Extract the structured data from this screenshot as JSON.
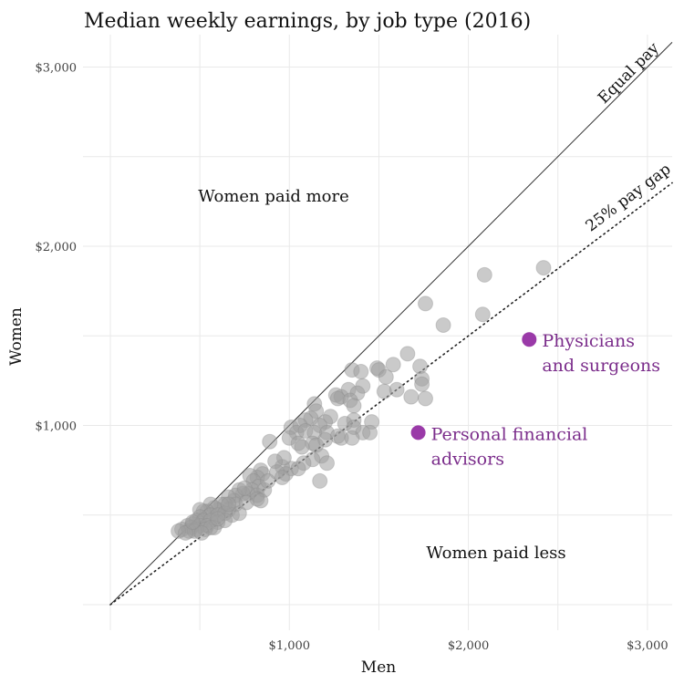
{
  "chart_data": {
    "type": "scatter",
    "title": "Median weekly earnings, by job type (2016)",
    "xlabel": "Men",
    "ylabel": "Women",
    "xlim": [
      0,
      3150
    ],
    "ylim": [
      0,
      3120
    ],
    "x_ticks": [
      1000,
      2000,
      3000
    ],
    "x_tick_labels": [
      "$1,000",
      "$2,000",
      "$3,000"
    ],
    "y_ticks": [
      1000,
      2000,
      3000
    ],
    "y_tick_labels": [
      "$1,000",
      "$2,000",
      "$3,000"
    ],
    "grid": true,
    "reference_lines": [
      {
        "label": "Equal pay",
        "slope": 1.0,
        "style": "solid"
      },
      {
        "label": "25% pay gap",
        "slope": 0.75,
        "style": "dotted"
      }
    ],
    "region_labels": {
      "upper": "Women paid more",
      "lower": "Women paid less"
    },
    "highlighted": [
      {
        "label_line1": "Physicians",
        "label_line2": "and surgeons",
        "x": 2340,
        "y": 1480,
        "color": "#9a3aa8"
      },
      {
        "label_line1": "Personal financial",
        "label_line2": "advisors",
        "x": 1720,
        "y": 960,
        "color": "#9a3aa8"
      }
    ],
    "points": [
      [
        2420,
        1880
      ],
      [
        2090,
        1840
      ],
      [
        1760,
        1680
      ],
      [
        2080,
        1620
      ],
      [
        1860,
        1560
      ],
      [
        1660,
        1400
      ],
      [
        1580,
        1340
      ],
      [
        1730,
        1330
      ],
      [
        1490,
        1320
      ],
      [
        1500,
        1310
      ],
      [
        1350,
        1310
      ],
      [
        1400,
        1300
      ],
      [
        1540,
        1270
      ],
      [
        1740,
        1260
      ],
      [
        1740,
        1230
      ],
      [
        1410,
        1220
      ],
      [
        1600,
        1200
      ],
      [
        1330,
        1200
      ],
      [
        1380,
        1180
      ],
      [
        1530,
        1190
      ],
      [
        1260,
        1170
      ],
      [
        1290,
        1160
      ],
      [
        1680,
        1160
      ],
      [
        1270,
        1150
      ],
      [
        1760,
        1150
      ],
      [
        1340,
        1140
      ],
      [
        1140,
        1120
      ],
      [
        1360,
        1110
      ],
      [
        1230,
        1050
      ],
      [
        1150,
        1080
      ],
      [
        1120,
        1040
      ],
      [
        1090,
        1030
      ],
      [
        1200,
        1020
      ],
      [
        1360,
        1030
      ],
      [
        1460,
        1020
      ],
      [
        1010,
        990
      ],
      [
        1060,
        1000
      ],
      [
        1170,
        1000
      ],
      [
        1310,
        1010
      ],
      [
        1360,
        990
      ],
      [
        1040,
        960
      ],
      [
        1090,
        970
      ],
      [
        1140,
        960
      ],
      [
        1210,
        960
      ],
      [
        1270,
        940
      ],
      [
        1000,
        930
      ],
      [
        1050,
        900
      ],
      [
        1130,
        900
      ],
      [
        1200,
        920
      ],
      [
        1290,
        930
      ],
      [
        1410,
        960
      ],
      [
        1450,
        960
      ],
      [
        1350,
        930
      ],
      [
        890,
        910
      ],
      [
        1070,
        880
      ],
      [
        1150,
        890
      ],
      [
        1180,
        830
      ],
      [
        1130,
        810
      ],
      [
        1080,
        790
      ],
      [
        1210,
        790
      ],
      [
        1010,
        760
      ],
      [
        960,
        770
      ],
      [
        1050,
        760
      ],
      [
        980,
        730
      ],
      [
        970,
        820
      ],
      [
        920,
        800
      ],
      [
        930,
        740
      ],
      [
        1170,
        690
      ],
      [
        960,
        710
      ],
      [
        840,
        750
      ],
      [
        850,
        730
      ],
      [
        820,
        710
      ],
      [
        780,
        720
      ],
      [
        800,
        690
      ],
      [
        830,
        660
      ],
      [
        790,
        640
      ],
      [
        770,
        620
      ],
      [
        820,
        610
      ],
      [
        860,
        640
      ],
      [
        740,
        620
      ],
      [
        720,
        640
      ],
      [
        700,
        610
      ],
      [
        690,
        580
      ],
      [
        660,
        600
      ],
      [
        700,
        560
      ],
      [
        640,
        560
      ],
      [
        660,
        530
      ],
      [
        620,
        560
      ],
      [
        600,
        530
      ],
      [
        580,
        540
      ],
      [
        560,
        560
      ],
      [
        540,
        520
      ],
      [
        520,
        520
      ],
      [
        500,
        530
      ],
      [
        560,
        500
      ],
      [
        600,
        500
      ],
      [
        640,
        510
      ],
      [
        680,
        500
      ],
      [
        720,
        510
      ],
      [
        760,
        570
      ],
      [
        820,
        590
      ],
      [
        840,
        580
      ],
      [
        500,
        490
      ],
      [
        480,
        470
      ],
      [
        520,
        470
      ],
      [
        560,
        470
      ],
      [
        600,
        460
      ],
      [
        640,
        470
      ],
      [
        460,
        450
      ],
      [
        500,
        440
      ],
      [
        540,
        440
      ],
      [
        580,
        430
      ],
      [
        430,
        440
      ],
      [
        450,
        430
      ],
      [
        480,
        420
      ],
      [
        530,
        420
      ],
      [
        560,
        430
      ],
      [
        400,
        420
      ],
      [
        440,
        410
      ],
      [
        470,
        410
      ],
      [
        510,
        400
      ],
      [
        380,
        410
      ],
      [
        420,
        400
      ],
      [
        460,
        460
      ],
      [
        600,
        480
      ],
      [
        660,
        560
      ],
      [
        750,
        650
      ],
      [
        880,
        690
      ]
    ]
  }
}
